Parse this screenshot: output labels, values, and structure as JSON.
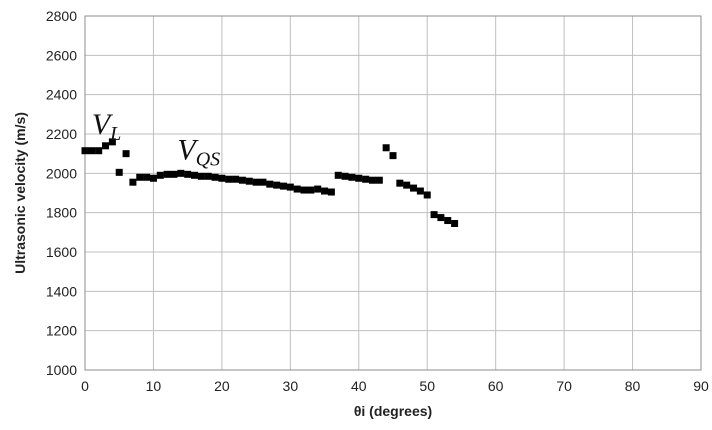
{
  "chart_data": {
    "type": "scatter",
    "xlabel": "θi (degrees)",
    "ylabel": "Ultrasonic velocity (m/s)",
    "xlim": [
      0,
      90
    ],
    "ylim": [
      1000,
      2800
    ],
    "xticks": [
      "0",
      "10",
      "20",
      "30",
      "40",
      "50",
      "60",
      "70",
      "80",
      "90"
    ],
    "yticks": [
      "1000",
      "1200",
      "1400",
      "1600",
      "1800",
      "2000",
      "2200",
      "2400",
      "2600",
      "2800"
    ],
    "grid": true,
    "legend": "none",
    "marker": "square",
    "marker_color": "#000000",
    "annotations": [
      {
        "main": "V",
        "sub": "L",
        "x": 1.0,
        "y": 2200
      },
      {
        "main": "V",
        "sub": "QS",
        "x": 13.5,
        "y": 2070
      }
    ],
    "series": [
      {
        "points": [
          [
            0,
            2115
          ],
          [
            1,
            2115
          ],
          [
            2,
            2115
          ],
          [
            3,
            2140
          ],
          [
            4,
            2160
          ],
          [
            5,
            2005
          ],
          [
            6,
            2100
          ],
          [
            7,
            1955
          ],
          [
            8,
            1980
          ],
          [
            9,
            1980
          ],
          [
            10,
            1975
          ],
          [
            11,
            1990
          ],
          [
            12,
            1995
          ],
          [
            13,
            1995
          ],
          [
            14,
            2000
          ],
          [
            15,
            1995
          ],
          [
            16,
            1990
          ],
          [
            17,
            1985
          ],
          [
            18,
            1985
          ],
          [
            19,
            1980
          ],
          [
            20,
            1975
          ],
          [
            21,
            1970
          ],
          [
            22,
            1970
          ],
          [
            23,
            1965
          ],
          [
            24,
            1960
          ],
          [
            25,
            1955
          ],
          [
            26,
            1955
          ],
          [
            27,
            1945
          ],
          [
            28,
            1940
          ],
          [
            29,
            1935
          ],
          [
            30,
            1930
          ],
          [
            31,
            1920
          ],
          [
            32,
            1915
          ],
          [
            33,
            1915
          ],
          [
            34,
            1920
          ],
          [
            35,
            1910
          ],
          [
            36,
            1905
          ],
          [
            37,
            1990
          ],
          [
            38,
            1985
          ],
          [
            39,
            1980
          ],
          [
            40,
            1975
          ],
          [
            41,
            1970
          ],
          [
            42,
            1965
          ],
          [
            43,
            1965
          ],
          [
            44,
            2130
          ],
          [
            45,
            2090
          ],
          [
            46,
            1950
          ],
          [
            47,
            1940
          ],
          [
            48,
            1925
          ],
          [
            49,
            1910
          ],
          [
            50,
            1890
          ],
          [
            51,
            1790
          ],
          [
            52,
            1775
          ],
          [
            53,
            1760
          ],
          [
            54,
            1745
          ]
        ]
      }
    ]
  }
}
